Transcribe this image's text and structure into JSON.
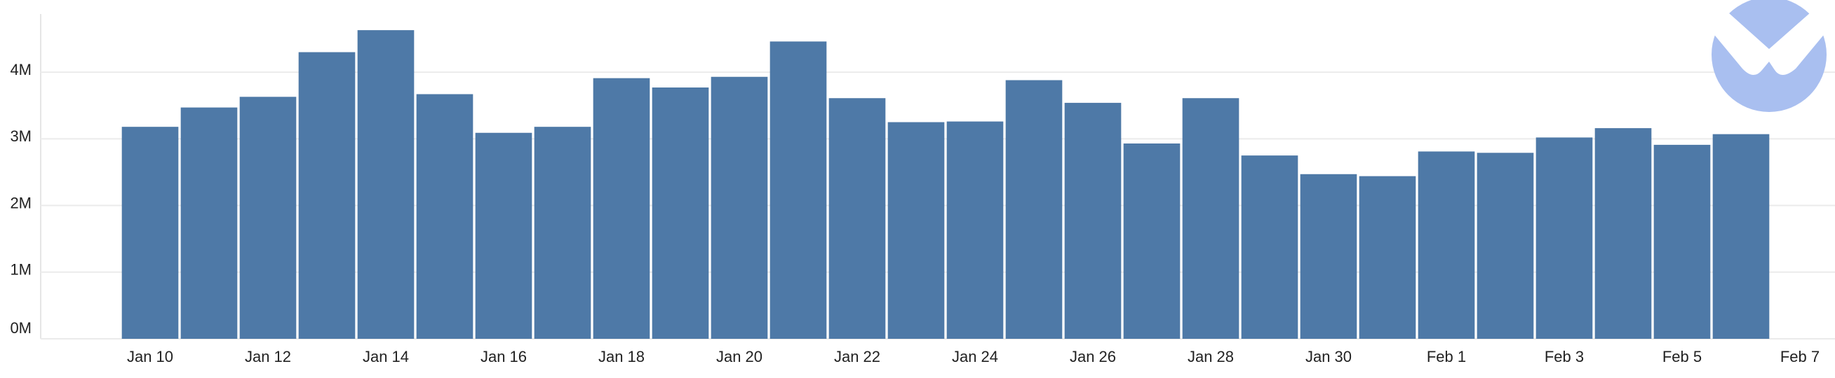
{
  "chart_data": {
    "type": "bar",
    "categories": [
      "Jan 10",
      null,
      "Jan 12",
      null,
      "Jan 14",
      null,
      "Jan 16",
      null,
      "Jan 18",
      null,
      "Jan 20",
      null,
      "Jan 22",
      null,
      "Jan 24",
      null,
      "Jan 26",
      null,
      "Jan 28",
      null,
      "Jan 30",
      null,
      "Feb 1",
      null,
      "Feb 3",
      null,
      "Feb 5",
      null,
      "Feb 7"
    ],
    "values": [
      3180000,
      3470000,
      3630000,
      4300000,
      4630000,
      3670000,
      3090000,
      3180000,
      3910000,
      3770000,
      3930000,
      4460000,
      3610000,
      3250000,
      3260000,
      3880000,
      3540000,
      2930000,
      3610000,
      2750000,
      2470000,
      2440000,
      2810000,
      2790000,
      3020000,
      3160000,
      2910000,
      3070000,
      null
    ],
    "color": "#4e79a7",
    "ylim": [
      0,
      4820000
    ],
    "yticks": [
      {
        "value": 0,
        "label": "0M"
      },
      {
        "value": 1000000,
        "label": "1M"
      },
      {
        "value": 2000000,
        "label": "2M"
      },
      {
        "value": 3000000,
        "label": "3M"
      },
      {
        "value": 4000000,
        "label": "4M"
      }
    ],
    "grid": true
  }
}
